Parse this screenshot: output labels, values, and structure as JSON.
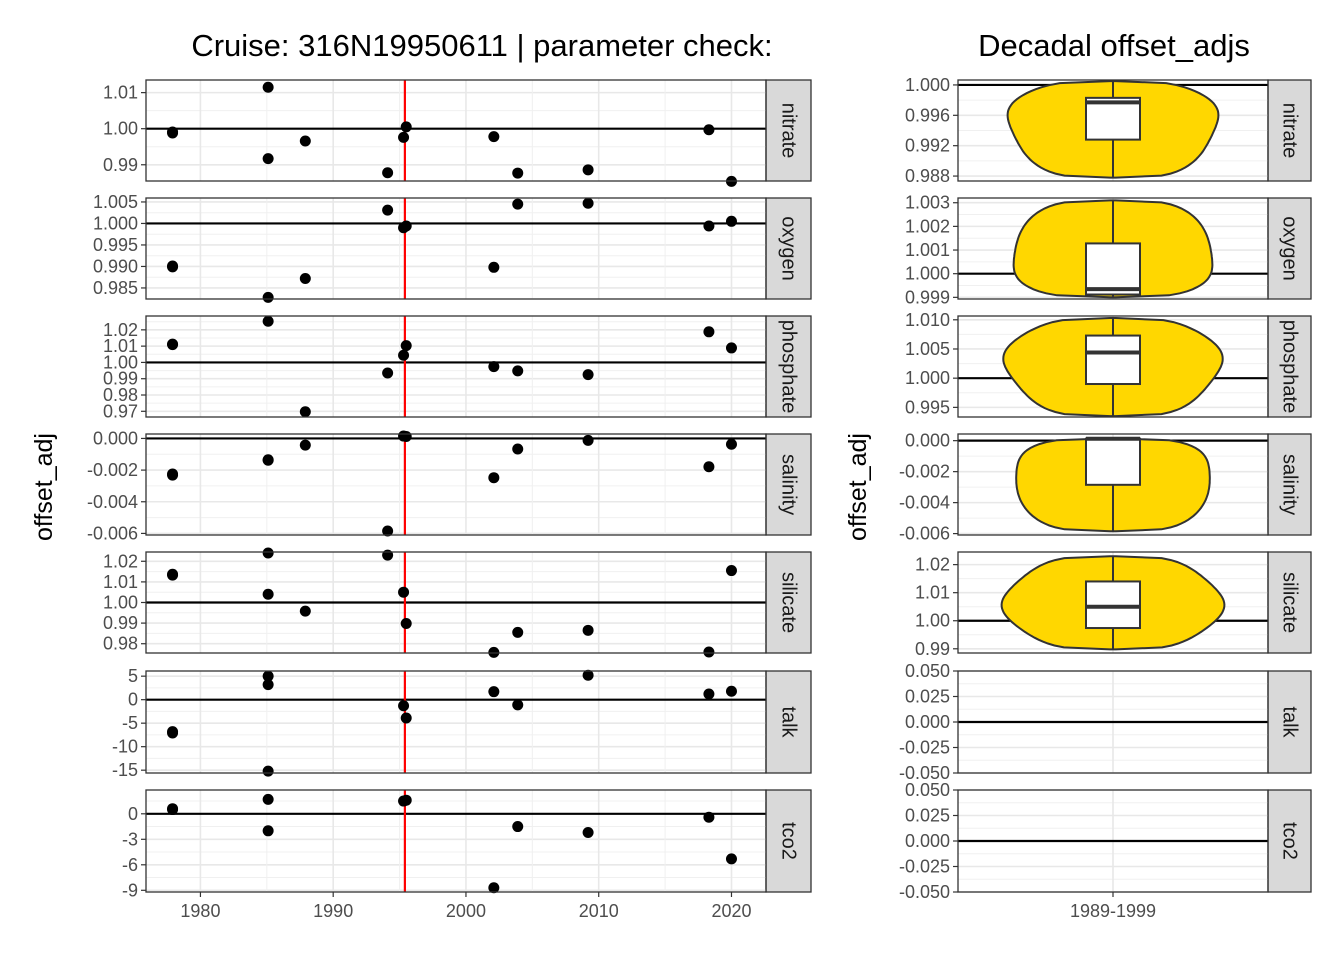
{
  "chart_data": [
    {
      "type": "scatter",
      "title": "Cruise: 316N19950611 | parameter check:",
      "ylabel": "offset_adj",
      "xlabel": "",
      "xlim": [
        1975.9,
        2022.6
      ],
      "x_ticks": [
        1980,
        1990,
        2000,
        2010,
        2020
      ],
      "x_tick_labels": [
        "1980",
        "1990",
        "2000",
        "2010",
        "2020"
      ],
      "reference_year": 1995.4,
      "reference_line_color": "#ff0000",
      "point_color": "#000000",
      "panels": [
        {
          "name": "nitrate",
          "ylim": [
            0.9855,
            1.0135
          ],
          "yticks": [
            0.99,
            1.0,
            1.01
          ],
          "ytick_labels": [
            "0.99",
            "1.00",
            "1.01"
          ],
          "hline": 1.0,
          "points": [
            {
              "x": 1977.9,
              "y": 0.9988
            },
            {
              "x": 1977.9,
              "y": 0.9991
            },
            {
              "x": 1985.1,
              "y": 1.0115
            },
            {
              "x": 1985.1,
              "y": 0.9917
            },
            {
              "x": 1987.9,
              "y": 0.9966
            },
            {
              "x": 1994.1,
              "y": 0.9878
            },
            {
              "x": 1995.3,
              "y": 0.9976
            },
            {
              "x": 1995.5,
              "y": 1.0005
            },
            {
              "x": 2002.1,
              "y": 0.9978
            },
            {
              "x": 2003.9,
              "y": 0.9877
            },
            {
              "x": 2009.2,
              "y": 0.9886
            },
            {
              "x": 2018.3,
              "y": 0.9997
            },
            {
              "x": 2020.0,
              "y": 0.9854
            }
          ]
        },
        {
          "name": "oxygen",
          "ylim": [
            0.98243,
            1.00592
          ],
          "yticks": [
            0.985,
            0.99,
            0.995,
            1.0,
            1.005
          ],
          "ytick_labels": [
            "0.985",
            "0.990",
            "0.995",
            "1.000",
            "1.005"
          ],
          "hline": 1.0,
          "points": [
            {
              "x": 1977.9,
              "y": 0.9901
            },
            {
              "x": 1977.9,
              "y": 0.9899
            },
            {
              "x": 1985.1,
              "y": 0.9828
            },
            {
              "x": 1987.9,
              "y": 0.9872
            },
            {
              "x": 1994.1,
              "y": 1.0031
            },
            {
              "x": 1995.3,
              "y": 0.999
            },
            {
              "x": 1995.5,
              "y": 0.9994
            },
            {
              "x": 2002.1,
              "y": 0.9898
            },
            {
              "x": 2003.9,
              "y": 1.0045
            },
            {
              "x": 2009.2,
              "y": 1.0047
            },
            {
              "x": 2018.3,
              "y": 0.9994
            },
            {
              "x": 2020.0,
              "y": 1.0005
            }
          ]
        },
        {
          "name": "phosphate",
          "ylim": [
            0.9665,
            1.0285
          ],
          "yticks": [
            0.97,
            0.98,
            0.99,
            1.0,
            1.01,
            1.02
          ],
          "ytick_labels": [
            "0.97",
            "0.98",
            "0.99",
            "1.00",
            "1.01",
            "1.02"
          ],
          "hline": 1.0,
          "points": [
            {
              "x": 1977.9,
              "y": 1.0112
            },
            {
              "x": 1977.9,
              "y": 1.0109
            },
            {
              "x": 1985.1,
              "y": 1.0253
            },
            {
              "x": 1987.9,
              "y": 0.9697
            },
            {
              "x": 1994.1,
              "y": 0.9935
            },
            {
              "x": 1995.3,
              "y": 1.0044
            },
            {
              "x": 1995.5,
              "y": 1.0103
            },
            {
              "x": 2002.1,
              "y": 0.9974
            },
            {
              "x": 2003.9,
              "y": 0.9948
            },
            {
              "x": 2009.2,
              "y": 0.9925
            },
            {
              "x": 2018.3,
              "y": 1.0188
            },
            {
              "x": 2020.0,
              "y": 1.0089
            }
          ]
        },
        {
          "name": "salinity",
          "ylim": [
            -0.0061,
            0.00028
          ],
          "yticks": [
            -0.006,
            -0.004,
            -0.002,
            0.0
          ],
          "ytick_labels": [
            "-0.006",
            "-0.004",
            "-0.002",
            "0.000"
          ],
          "hline": 0.0,
          "points": [
            {
              "x": 1977.9,
              "y": -0.00225
            },
            {
              "x": 1977.9,
              "y": -0.00232
            },
            {
              "x": 1985.1,
              "y": -0.00135
            },
            {
              "x": 1985.1,
              "y": -0.00138
            },
            {
              "x": 1987.9,
              "y": -0.00042
            },
            {
              "x": 1994.1,
              "y": -0.00585
            },
            {
              "x": 1995.3,
              "y": 0.00015
            },
            {
              "x": 1995.5,
              "y": 0.00012
            },
            {
              "x": 2002.1,
              "y": -0.00248
            },
            {
              "x": 2003.9,
              "y": -0.00067
            },
            {
              "x": 2009.2,
              "y": -0.00012
            },
            {
              "x": 2018.3,
              "y": -0.00179
            },
            {
              "x": 2020.0,
              "y": -0.00037
            }
          ]
        },
        {
          "name": "silicate",
          "ylim": [
            0.9755,
            1.0245
          ],
          "yticks": [
            0.98,
            0.99,
            1.0,
            1.01,
            1.02
          ],
          "ytick_labels": [
            "0.98",
            "0.99",
            "1.00",
            "1.01",
            "1.02"
          ],
          "hline": 1.0,
          "points": [
            {
              "x": 1977.9,
              "y": 1.0137
            },
            {
              "x": 1977.9,
              "y": 1.0133
            },
            {
              "x": 1985.1,
              "y": 1.024
            },
            {
              "x": 1985.1,
              "y": 1.004
            },
            {
              "x": 1987.9,
              "y": 0.9958
            },
            {
              "x": 1994.1,
              "y": 1.023
            },
            {
              "x": 1995.3,
              "y": 1.005
            },
            {
              "x": 1995.5,
              "y": 0.9898
            },
            {
              "x": 2002.1,
              "y": 0.9758
            },
            {
              "x": 2003.9,
              "y": 0.9855
            },
            {
              "x": 2009.2,
              "y": 0.9865
            },
            {
              "x": 2018.3,
              "y": 0.976
            },
            {
              "x": 2020.0,
              "y": 1.0155
            }
          ]
        },
        {
          "name": "talk",
          "ylim": [
            -15.6,
            6.1
          ],
          "yticks": [
            -15,
            -10,
            -5,
            0,
            5
          ],
          "ytick_labels": [
            "-15",
            "-10",
            "-5",
            "0",
            "5"
          ],
          "hline": 0.0,
          "points": [
            {
              "x": 1977.9,
              "y": -6.8
            },
            {
              "x": 1977.9,
              "y": -7.1
            },
            {
              "x": 1985.1,
              "y": 5.0
            },
            {
              "x": 1985.1,
              "y": 3.2
            },
            {
              "x": 1985.1,
              "y": -15.2
            },
            {
              "x": 1995.3,
              "y": -1.3
            },
            {
              "x": 1995.5,
              "y": -3.9
            },
            {
              "x": 2002.1,
              "y": 1.7
            },
            {
              "x": 2003.9,
              "y": -1.1
            },
            {
              "x": 2009.2,
              "y": 5.2
            },
            {
              "x": 2018.3,
              "y": 1.2
            },
            {
              "x": 2020.0,
              "y": 1.8
            }
          ]
        },
        {
          "name": "tco2",
          "ylim": [
            -9.2,
            2.8
          ],
          "yticks": [
            -9,
            -6,
            -3,
            0
          ],
          "ytick_labels": [
            "-9",
            "-6",
            "-3",
            "0"
          ],
          "hline": 0.0,
          "points": [
            {
              "x": 1977.9,
              "y": 0.6
            },
            {
              "x": 1977.9,
              "y": 0.5
            },
            {
              "x": 1985.1,
              "y": 1.7
            },
            {
              "x": 1985.1,
              "y": -2.0
            },
            {
              "x": 1995.3,
              "y": 1.5
            },
            {
              "x": 1995.5,
              "y": 1.6
            },
            {
              "x": 2002.1,
              "y": -8.7
            },
            {
              "x": 2003.9,
              "y": -1.5
            },
            {
              "x": 2009.2,
              "y": -2.2
            },
            {
              "x": 2018.3,
              "y": -0.4
            },
            {
              "x": 2020.0,
              "y": -5.3
            }
          ]
        }
      ]
    },
    {
      "type": "violin",
      "title": "Decadal offset_adjs",
      "ylabel": "offset_adj",
      "categories": [
        "1989-1999"
      ],
      "fill_color": "#ffd700",
      "panels": [
        {
          "name": "nitrate",
          "ylim": [
            0.98735,
            1.00065
          ],
          "yticks": [
            0.988,
            0.992,
            0.996,
            1.0
          ],
          "ytick_labels": [
            "0.988",
            "0.992",
            "0.996",
            "1.000"
          ],
          "hline": 1.0,
          "violin_range": [
            0.9878,
            1.0005
          ],
          "box": {
            "q1": 0.9928,
            "median": 0.9977,
            "q3": 0.9983
          }
        },
        {
          "name": "oxygen",
          "ylim": [
            0.99893,
            1.0032
          ],
          "yticks": [
            0.999,
            1.0,
            1.001,
            1.002,
            1.003
          ],
          "ytick_labels": [
            "0.999",
            "1.000",
            "1.001",
            "1.002",
            "1.003"
          ],
          "hline": 1.0,
          "violin_range": [
            0.999,
            1.0031
          ],
          "box": {
            "q1": 0.99912,
            "median": 0.99935,
            "q3": 1.00128
          }
        },
        {
          "name": "phosphate",
          "ylim": [
            0.99335,
            1.01065
          ],
          "yticks": [
            0.995,
            1.0,
            1.005,
            1.01
          ],
          "ytick_labels": [
            "0.995",
            "1.000",
            "1.005",
            "1.010"
          ],
          "hline": 1.0,
          "violin_range": [
            0.9935,
            1.0103
          ],
          "box": {
            "q1": 0.999,
            "median": 1.0044,
            "q3": 1.0073
          }
        },
        {
          "name": "salinity",
          "ylim": [
            -0.00609,
            0.00043
          ],
          "yticks": [
            -0.006,
            -0.004,
            -0.002,
            0.0
          ],
          "ytick_labels": [
            "-0.006",
            "-0.004",
            "-0.002",
            "0.000"
          ],
          "hline": 0.0,
          "violin_range": [
            -0.00585,
            0.00015
          ],
          "box": {
            "q1": -0.00285,
            "median": 0.00012,
            "q3": 0.00013
          }
        },
        {
          "name": "silicate",
          "ylim": [
            0.9885,
            1.0245
          ],
          "yticks": [
            0.99,
            1.0,
            1.01,
            1.02
          ],
          "ytick_labels": [
            "0.99",
            "1.00",
            "1.01",
            "1.02"
          ],
          "hline": 1.0,
          "violin_range": [
            0.9898,
            1.023
          ],
          "box": {
            "q1": 0.9974,
            "median": 1.005,
            "q3": 1.014
          }
        },
        {
          "name": "talk",
          "ylim": [
            -0.05,
            0.05
          ],
          "yticks": [
            -0.05,
            -0.025,
            0.0,
            0.025,
            0.05
          ],
          "ytick_labels": [
            "-0.050",
            "-0.025",
            "0.000",
            "0.025",
            "0.050"
          ],
          "hline": 0.0,
          "violin_range": null,
          "box": null
        },
        {
          "name": "tco2",
          "ylim": [
            -0.05,
            0.05
          ],
          "yticks": [
            -0.05,
            -0.025,
            0.0,
            0.025,
            0.05
          ],
          "ytick_labels": [
            "-0.050",
            "-0.025",
            "0.000",
            "0.025",
            "0.050"
          ],
          "hline": 0.0,
          "violin_range": null,
          "box": null
        }
      ]
    }
  ]
}
